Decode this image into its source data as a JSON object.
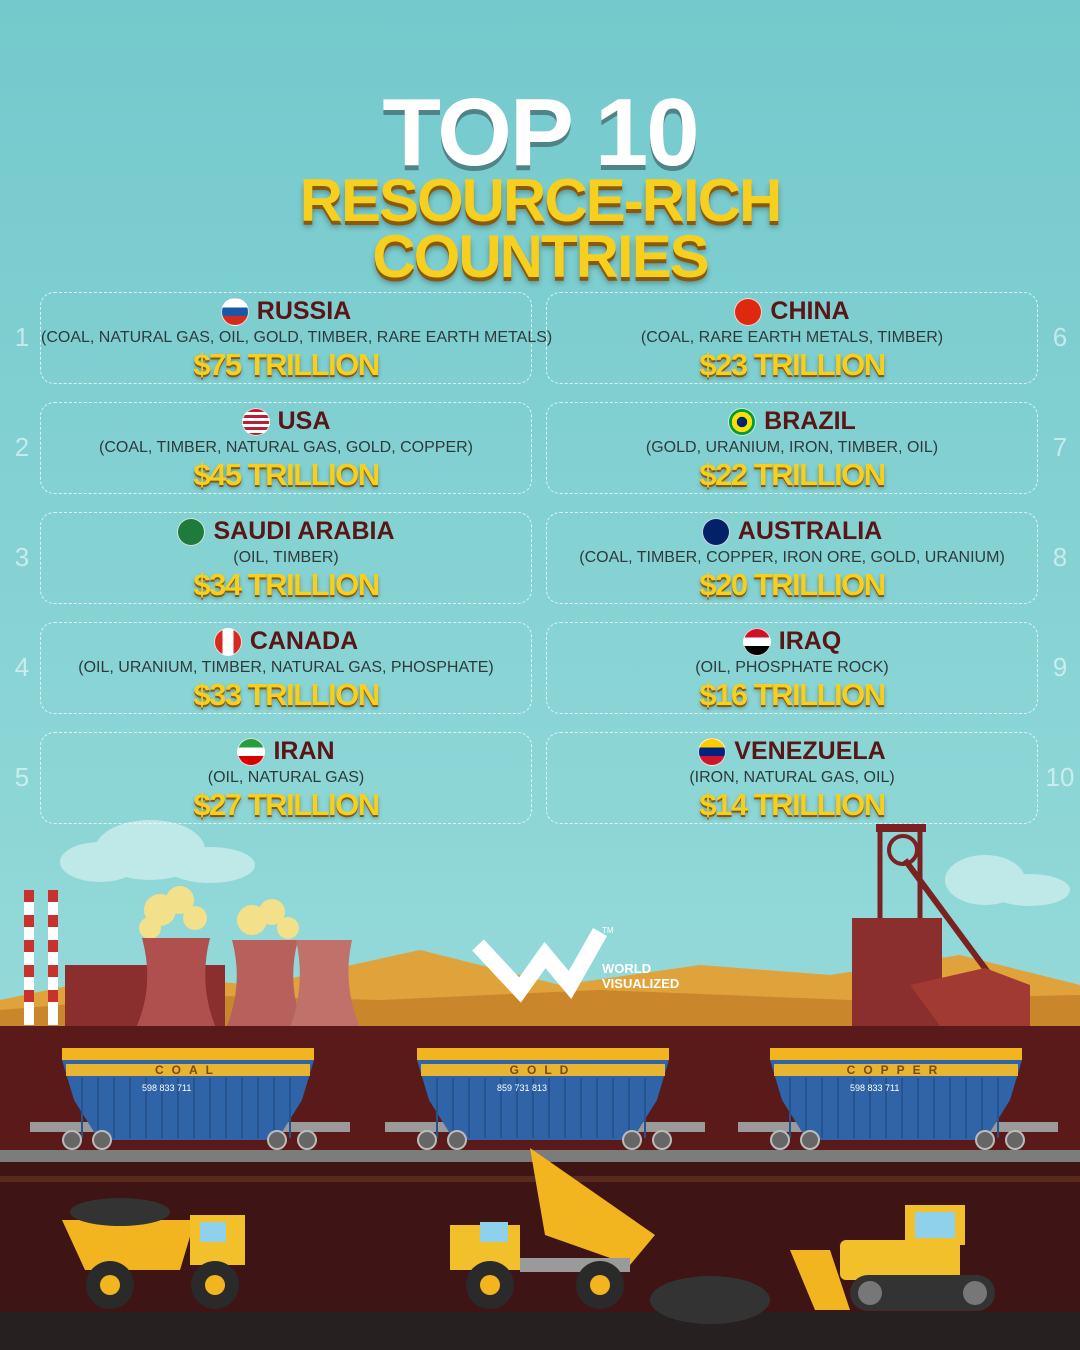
{
  "header": {
    "title": "TOP 10",
    "subtitle_1": "RESOURCE-RICH",
    "subtitle_2": "COUNTRIES"
  },
  "items": [
    {
      "rank": "1",
      "name": "RUSSIA",
      "resources": "(COAL, NATURAL GAS, OIL, GOLD, TIMBER, RARE EARTH METALS)",
      "value": "$75 TRILLION"
    },
    {
      "rank": "2",
      "name": "USA",
      "resources": "(COAL, TIMBER, NATURAL GAS, GOLD, COPPER)",
      "value": "$45 TRILLION"
    },
    {
      "rank": "3",
      "name": "SAUDI ARABIA",
      "resources": "(OIL, TIMBER)",
      "value": "$34 TRILLION"
    },
    {
      "rank": "4",
      "name": "CANADA",
      "resources": "(OIL, URANIUM, TIMBER, NATURAL GAS, PHOSPHATE)",
      "value": "$33 TRILLION"
    },
    {
      "rank": "5",
      "name": "IRAN",
      "resources": "(OIL, NATURAL GAS)",
      "value": "$27 TRILLION"
    },
    {
      "rank": "6",
      "name": "CHINA",
      "resources": "(COAL, RARE EARTH METALS, TIMBER)",
      "value": "$23 TRILLION"
    },
    {
      "rank": "7",
      "name": "BRAZIL",
      "resources": "(GOLD, URANIUM, IRON, TIMBER, OIL)",
      "value": "$22 TRILLION"
    },
    {
      "rank": "8",
      "name": "AUSTRALIA",
      "resources": "(COAL, TIMBER, COPPER, IRON ORE, GOLD, URANIUM)",
      "value": "$20 TRILLION"
    },
    {
      "rank": "9",
      "name": "IRAQ",
      "resources": "(OIL, PHOSPHATE ROCK)",
      "value": "$16 TRILLION"
    },
    {
      "rank": "10",
      "name": "VENEZUELA",
      "resources": "(IRON, NATURAL GAS, OIL)",
      "value": "$14 TRILLION"
    }
  ],
  "logo": {
    "line_1": "WORLD",
    "line_2": "VISUALIZED",
    "mark": "TM"
  },
  "train": [
    {
      "label": "COAL",
      "number": "598  833  711"
    },
    {
      "label": "GOLD",
      "number": "859  731  813"
    },
    {
      "label": "COPPER",
      "number": "598  833  711"
    }
  ]
}
